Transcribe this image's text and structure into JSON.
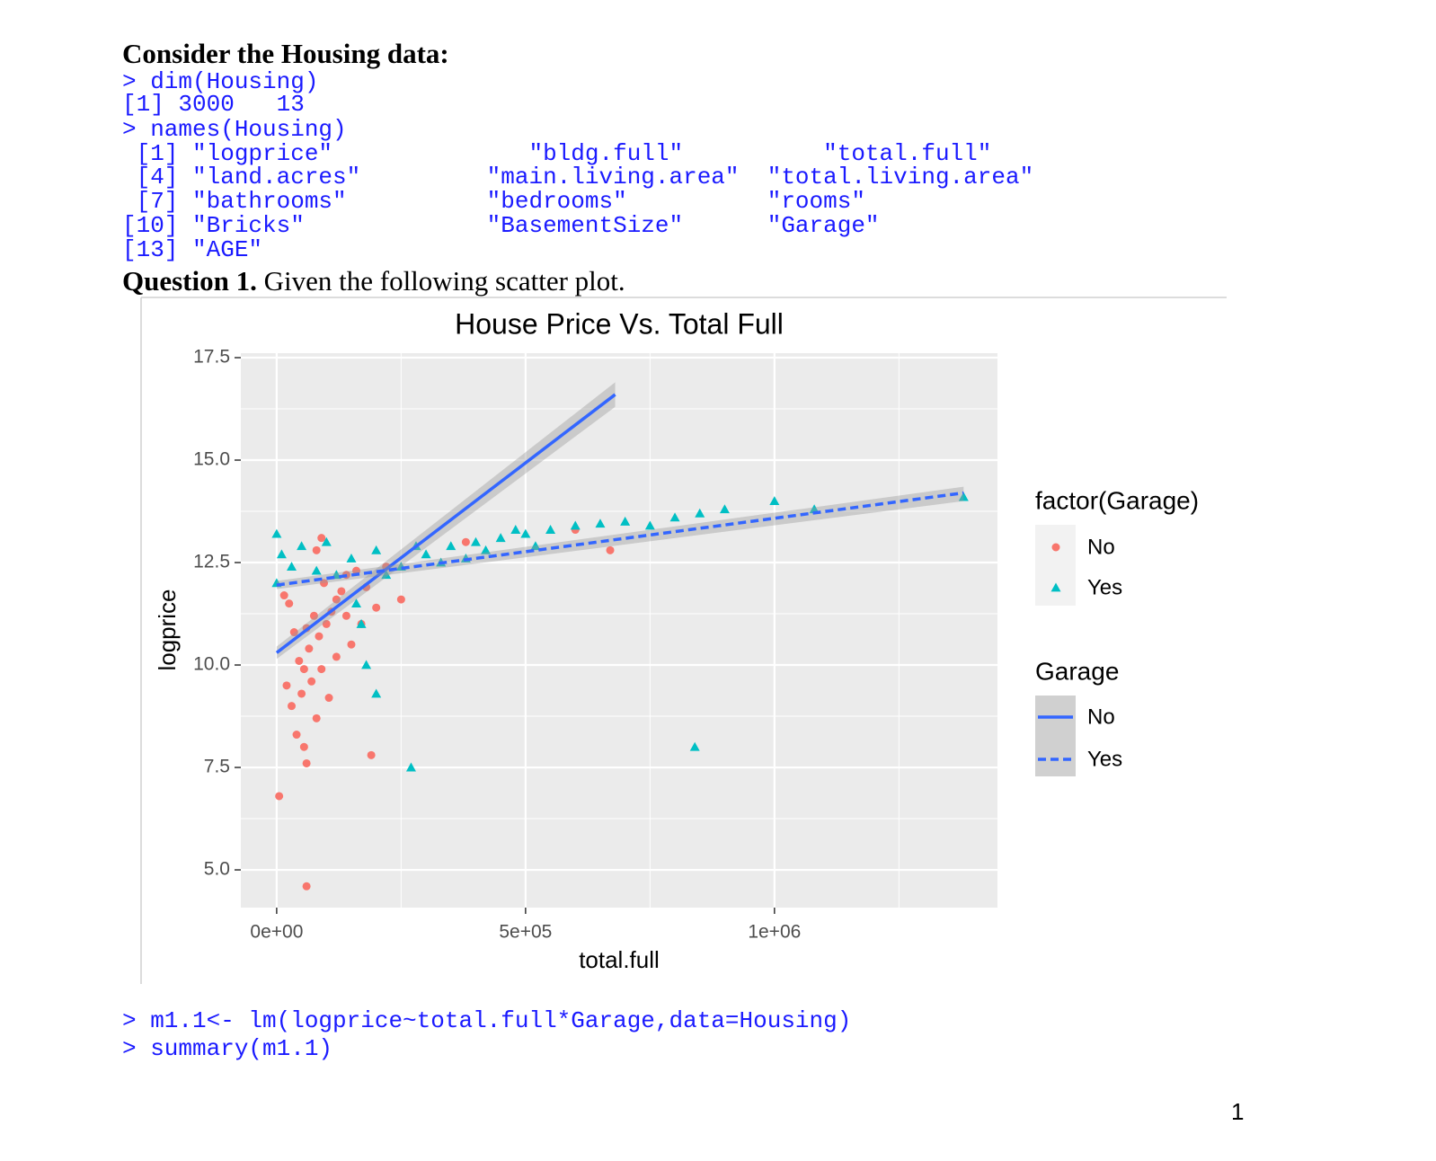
{
  "doc": {
    "heading": "Consider the Housing data:",
    "code1": [
      "> dim(Housing)",
      "[1] 3000   13",
      "> names(Housing)",
      " [1] \"logprice\"              \"bldg.full\"          \"total.full\"",
      " [4] \"land.acres\"         \"main.living.area\"  \"total.living.area\"",
      " [7] \"bathrooms\"          \"bedrooms\"          \"rooms\"",
      "[10] \"Bricks\"             \"BasementSize\"      \"Garage\"",
      "[13] \"AGE\""
    ],
    "question_label": "Question 1.",
    "question_text": "Given the following scatter plot.",
    "code2": [
      "> m1.1<- lm(logprice~total.full*Garage,data=Housing)",
      "> summary(m1.1)"
    ],
    "page_number": "1"
  },
  "chart_data": {
    "type": "scatter",
    "title": "House Price Vs. Total Full",
    "x_label": "total.full",
    "y_label": "logprice",
    "xlim": [
      -72000,
      1448000
    ],
    "ylim": [
      4.08,
      17.61
    ],
    "xticks": [
      {
        "value": 0,
        "label": "0e+00"
      },
      {
        "value": 500000,
        "label": "5e+05"
      },
      {
        "value": 1000000,
        "label": "1e+06"
      }
    ],
    "yticks": [
      {
        "value": 5,
        "label": "5.0"
      },
      {
        "value": 7.5,
        "label": "7.5"
      },
      {
        "value": 10,
        "label": "10.0"
      },
      {
        "value": 12.5,
        "label": "12.5"
      },
      {
        "value": 15,
        "label": "15.0"
      },
      {
        "value": 17.5,
        "label": "17.5"
      }
    ],
    "minor_xticks": [
      250000,
      750000,
      1250000
    ],
    "minor_yticks": [
      6.25,
      8.75,
      11.25,
      13.75,
      16.25
    ],
    "grid": true,
    "legend": "right",
    "legend_titles": [
      "factor(Garage)",
      "Garage"
    ],
    "series": [
      {
        "name": "No",
        "color": "#F8766D",
        "marker": "circle",
        "x": [
          5000,
          60000,
          60000,
          55000,
          190000,
          40000,
          80000,
          30000,
          50000,
          70000,
          90000,
          20000,
          45000,
          65000,
          85000,
          100000,
          110000,
          120000,
          130000,
          75000,
          35000,
          25000,
          15000,
          95000,
          140000,
          160000,
          180000,
          200000,
          220000,
          250000,
          170000,
          150000,
          105000,
          80000,
          90000,
          380000,
          600000,
          670000,
          55000,
          120000,
          140000,
          60000
        ],
        "y": [
          6.8,
          4.6,
          7.6,
          8.0,
          7.8,
          8.3,
          8.7,
          9.0,
          9.3,
          9.6,
          9.9,
          9.5,
          10.1,
          10.4,
          10.7,
          11.0,
          11.3,
          11.6,
          11.8,
          11.2,
          10.8,
          11.5,
          11.7,
          12.0,
          12.2,
          12.3,
          11.9,
          11.4,
          12.4,
          11.6,
          11.0,
          10.5,
          9.2,
          12.8,
          13.1,
          13.0,
          13.3,
          12.8,
          9.9,
          10.2,
          11.2,
          10.9
        ]
      },
      {
        "name": "Yes",
        "color": "#00BFC4",
        "marker": "triangle",
        "x": [
          0,
          0,
          10000,
          50000,
          100000,
          150000,
          200000,
          250000,
          300000,
          350000,
          400000,
          450000,
          500000,
          550000,
          600000,
          650000,
          700000,
          750000,
          800000,
          850000,
          900000,
          1000000,
          1080000,
          1380000,
          170000,
          180000,
          200000,
          270000,
          840000,
          160000,
          120000,
          30000,
          80000,
          220000,
          330000,
          420000,
          480000,
          520000,
          280000,
          380000
        ],
        "y": [
          13.2,
          12.0,
          12.7,
          12.9,
          13.0,
          12.6,
          12.8,
          12.4,
          12.7,
          12.9,
          13.0,
          13.1,
          13.2,
          13.3,
          13.4,
          13.45,
          13.5,
          13.4,
          13.6,
          13.7,
          13.8,
          14.0,
          13.8,
          14.1,
          11.0,
          10.0,
          9.3,
          7.5,
          8.0,
          11.5,
          12.2,
          12.4,
          12.3,
          12.2,
          12.5,
          12.8,
          13.3,
          12.9,
          12.9,
          12.6
        ]
      }
    ],
    "fits": [
      {
        "name": "No",
        "color": "#3366FF",
        "dash": "solid",
        "x": [
          0,
          680000
        ],
        "y": [
          10.3,
          16.6
        ],
        "lower": [
          10.15,
          16.3
        ],
        "upper": [
          10.45,
          16.9
        ]
      },
      {
        "name": "Yes",
        "color": "#3366FF",
        "dash": "dashed",
        "x": [
          0,
          1380000
        ],
        "y": [
          11.95,
          14.2
        ],
        "lower": [
          11.85,
          14.0
        ],
        "upper": [
          12.05,
          14.35
        ]
      }
    ]
  }
}
